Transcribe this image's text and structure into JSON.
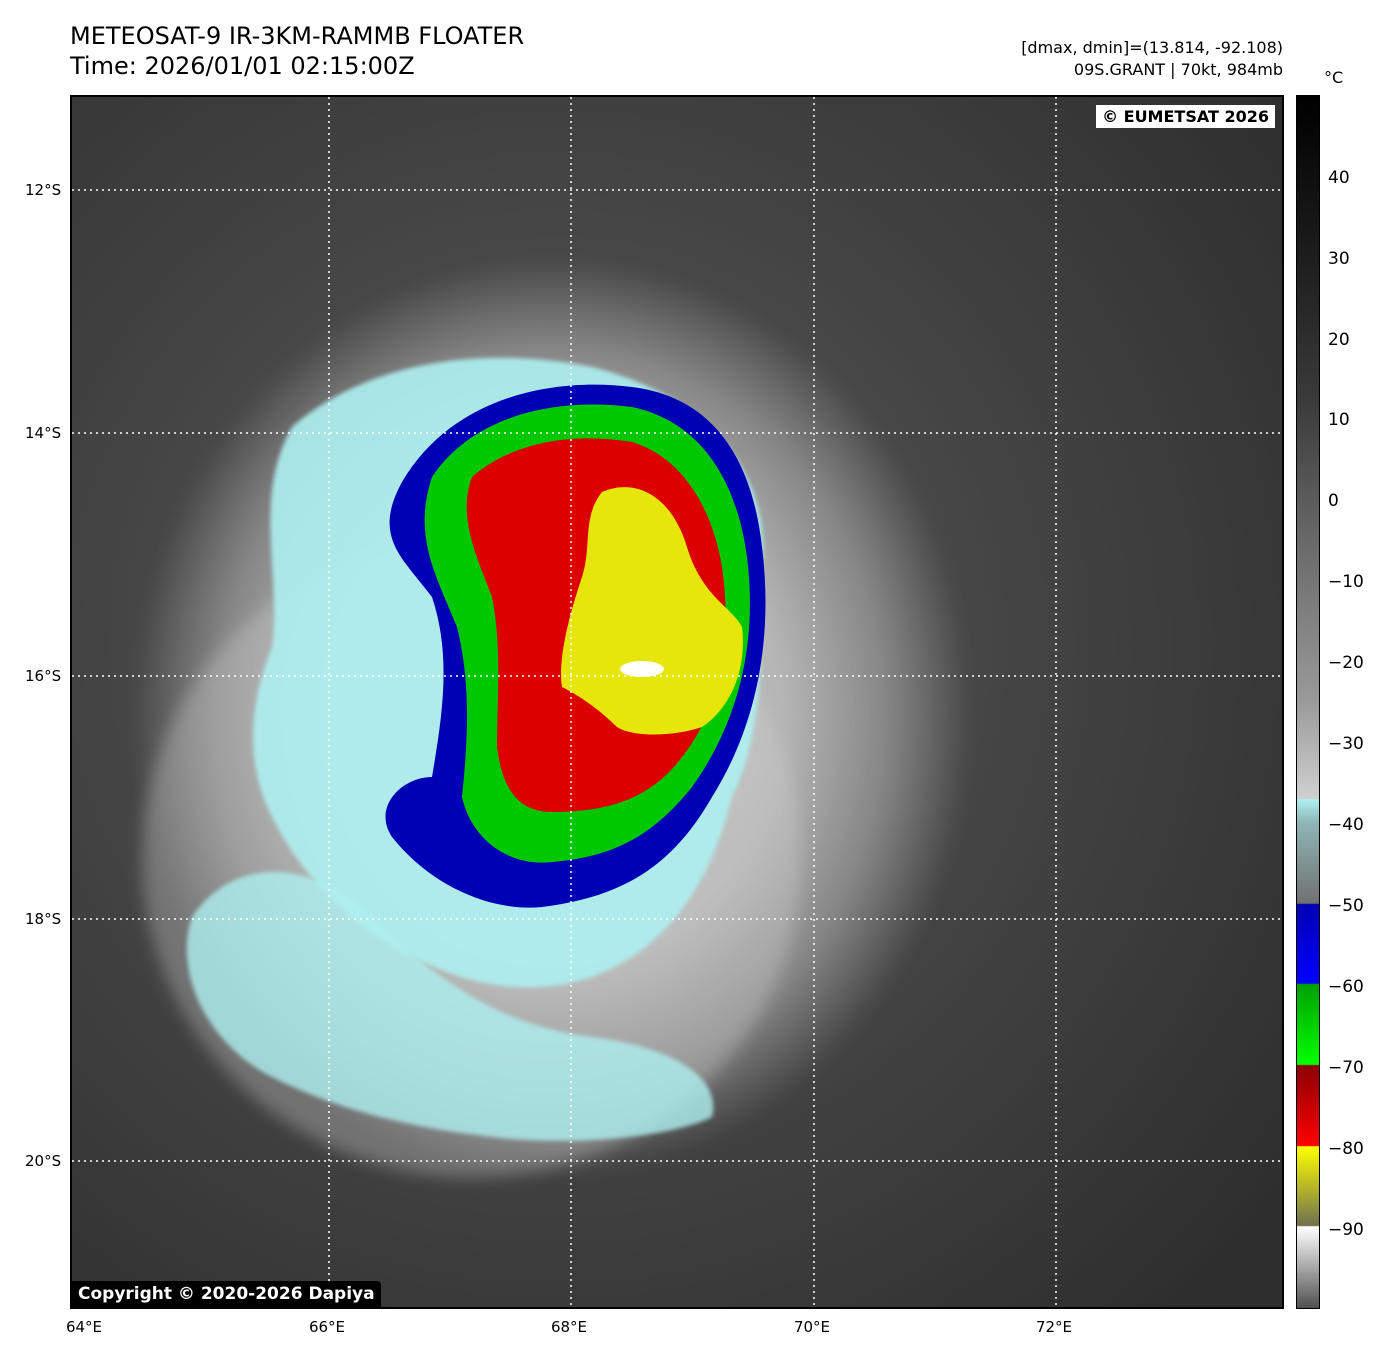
{
  "title_line1": "METEOSAT-9 IR-3KM-RAMMB FLOATER",
  "title_line2": "Time: 2026/01/01 02:15:00Z",
  "info_line1": "[dmax, dmin]=(13.814, -92.108)",
  "info_line2": "09S.GRANT | 70kt, 984mb",
  "watermark_top": "© EUMETSAT 2026",
  "watermark_bottom": "Copyright © 2020-2026 Dapiya",
  "colorbar_unit": "°C",
  "lat_labels": [
    "12°S",
    "14°S",
    "16°S",
    "18°S",
    "20°S"
  ],
  "lon_labels": [
    "64°E",
    "66°E",
    "68°E",
    "70°E",
    "72°E"
  ],
  "colorbar_ticks": [
    "40",
    "30",
    "20",
    "10",
    "0",
    "−10",
    "−20",
    "−30",
    "−40",
    "−50",
    "−60",
    "−70",
    "−80",
    "−90"
  ],
  "colors": {
    "ice": "#aef0f0",
    "blue": "#0000b4",
    "green": "#00c800",
    "red": "#dc0000",
    "yellow": "#e6e60a",
    "eye": "#ffffff"
  }
}
